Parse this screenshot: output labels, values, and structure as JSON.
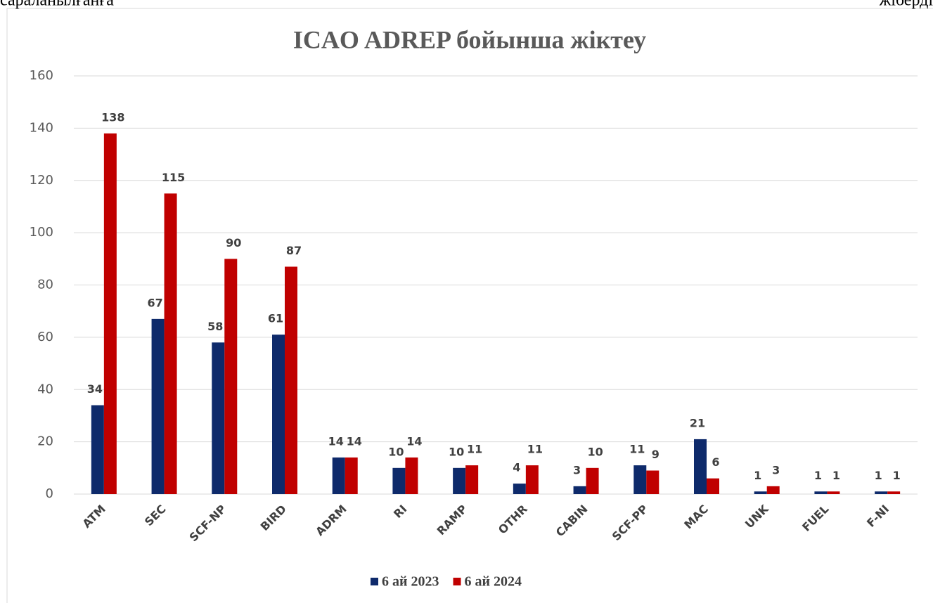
{
  "page_text": {
    "left": "сараланылғанға",
    "right": "жіберді"
  },
  "chart_data": {
    "type": "bar",
    "title": "ICAO ADREP бойынша жіктеу",
    "categories": [
      "ATM",
      "SEC",
      "SCF-NP",
      "BIRD",
      "ADRM",
      "RI",
      "RAMP",
      "OTHR",
      "CABIN",
      "SCF-PP",
      "MAC",
      "UNK",
      "FUEL",
      "F-NI"
    ],
    "series": [
      {
        "name": "6 ай 2023",
        "color": "#0e2a6b",
        "values": [
          34,
          67,
          58,
          61,
          14,
          10,
          10,
          4,
          3,
          11,
          21,
          1,
          1,
          1
        ]
      },
      {
        "name": "6 ай 2024",
        "color": "#c00000",
        "values": [
          138,
          115,
          90,
          87,
          14,
          14,
          11,
          11,
          10,
          9,
          6,
          3,
          1,
          1
        ]
      }
    ],
    "ylim": [
      0,
      160
    ],
    "yticks": [
      0,
      20,
      40,
      60,
      80,
      100,
      120,
      140,
      160
    ],
    "grid": true,
    "legend": "bottom"
  }
}
